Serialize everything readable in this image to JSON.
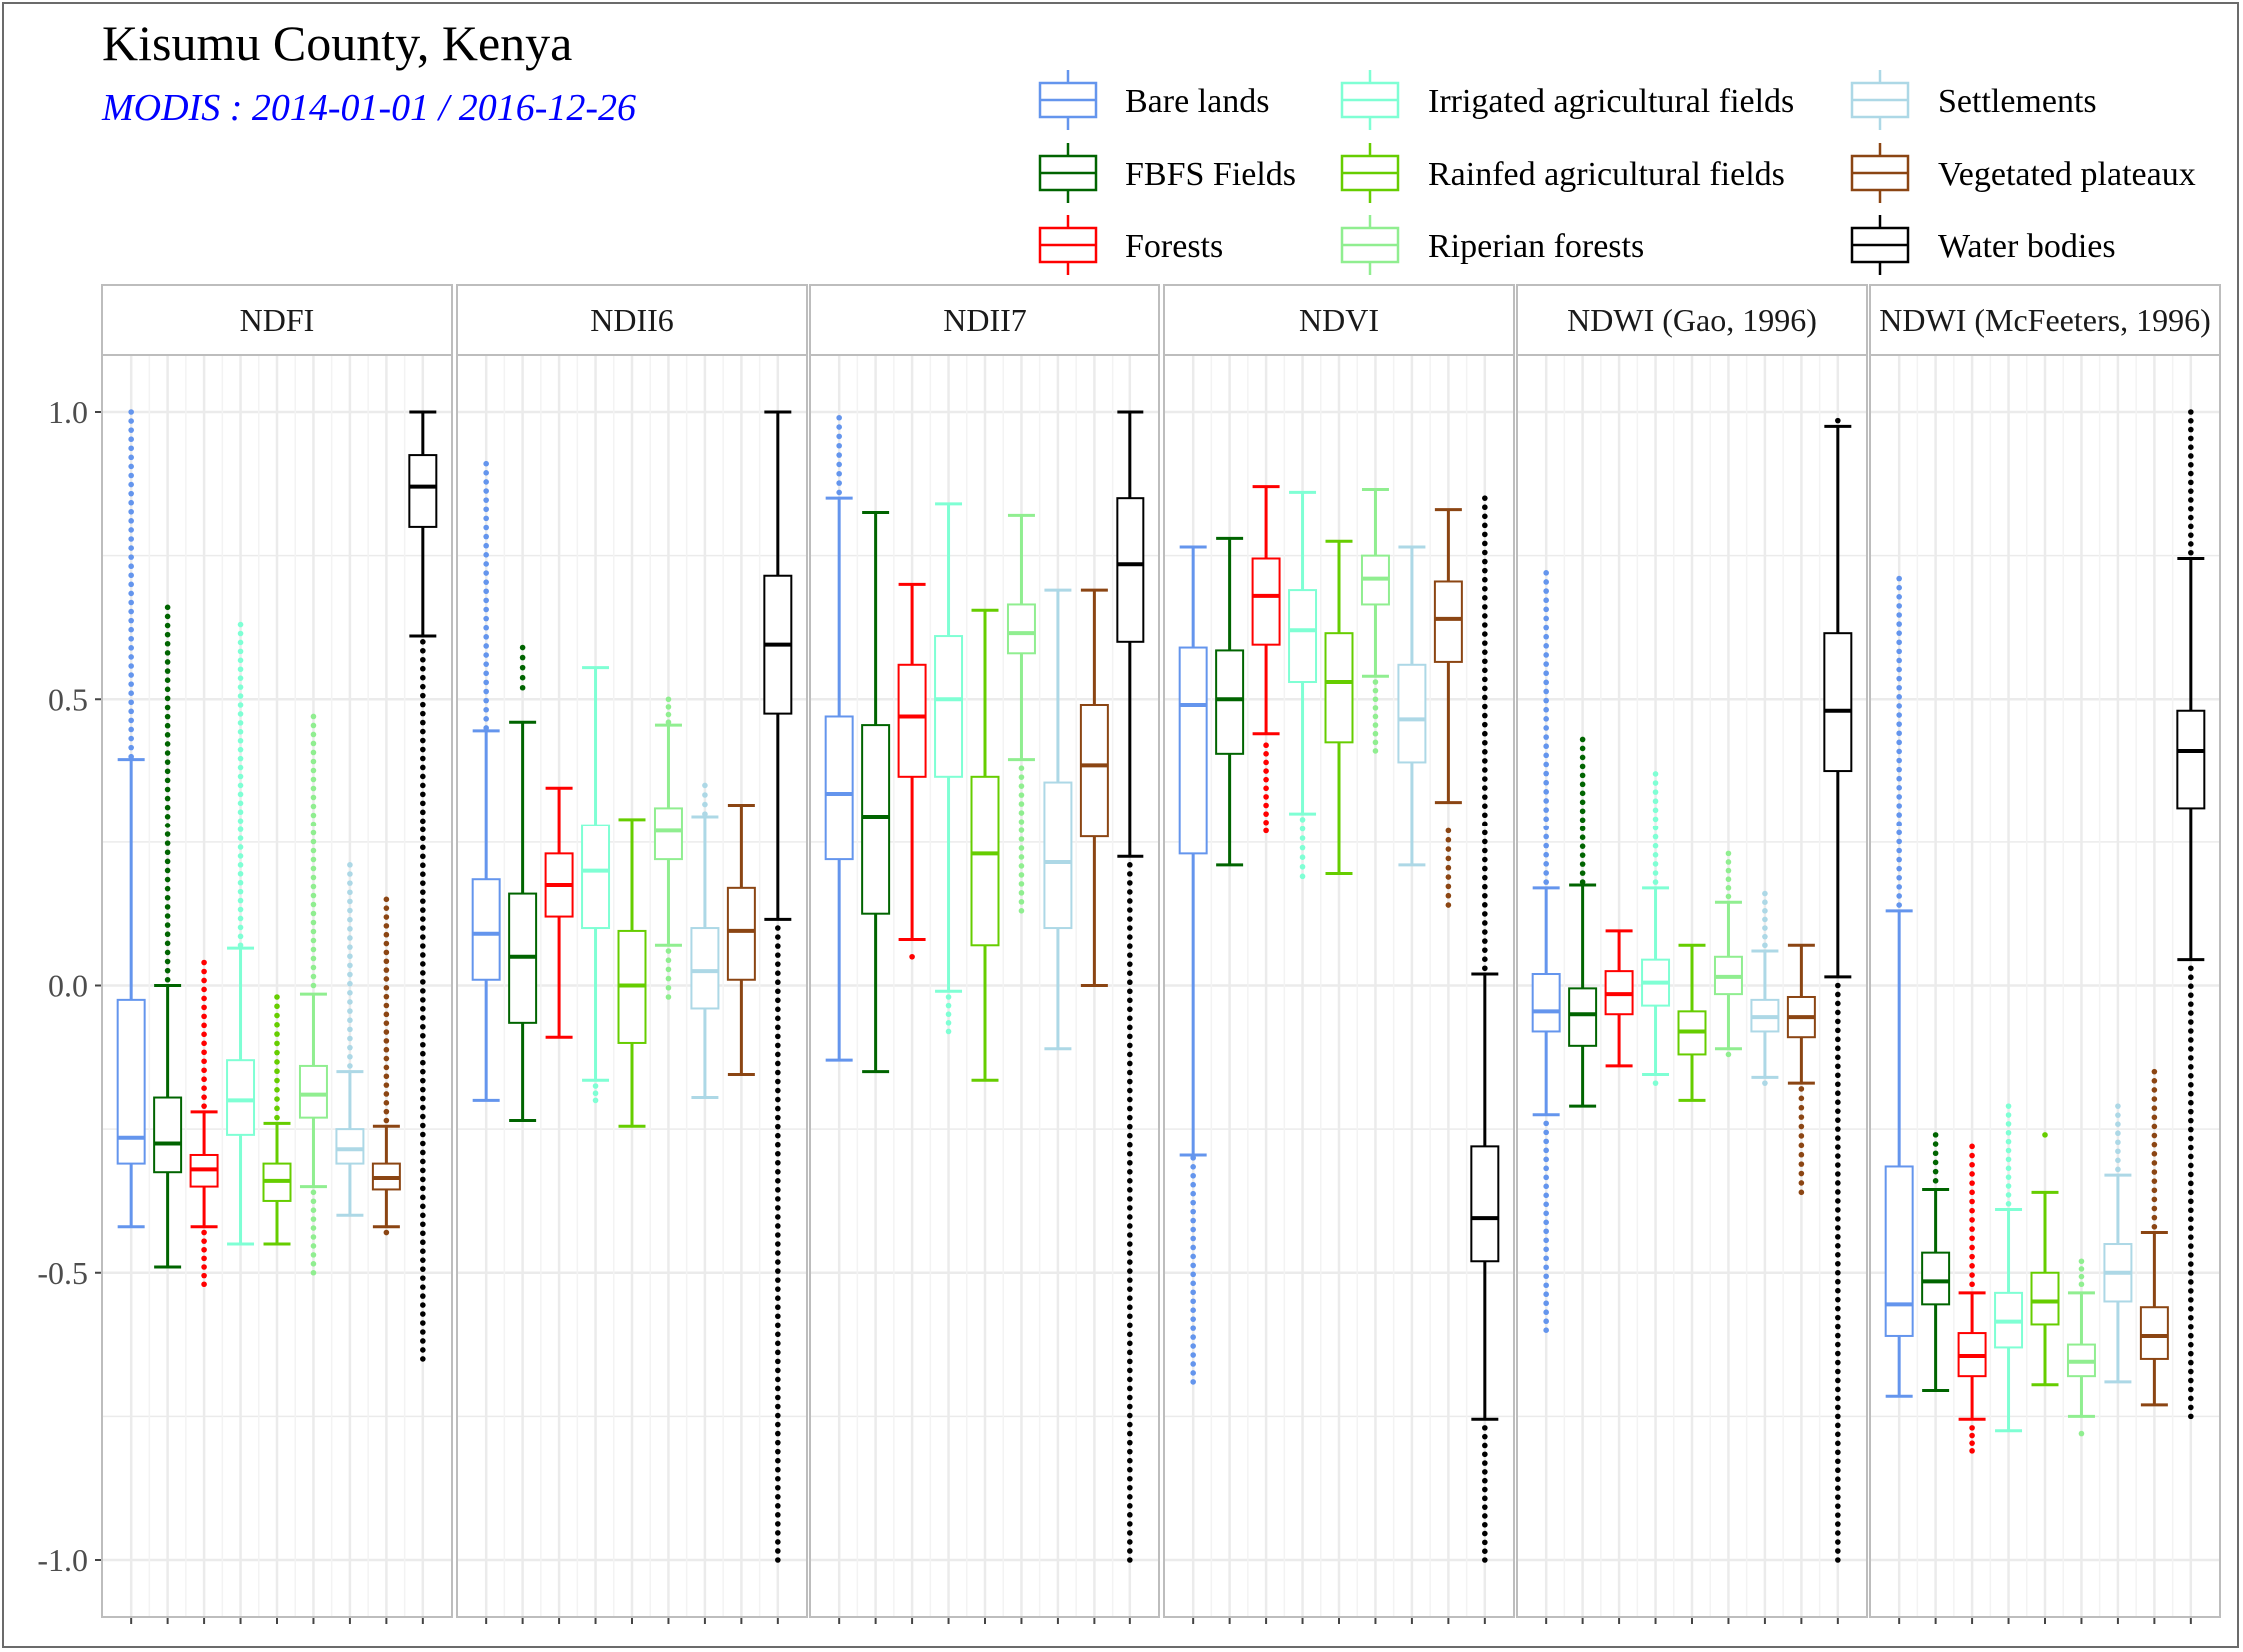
{
  "chart_data": {
    "type": "boxplot",
    "title": "Kisumu County, Kenya",
    "subtitle": "MODIS : 2014-01-01 / 2016-12-26",
    "ylim": [
      -1.0,
      1.0
    ],
    "y_ticks": [
      "-1.0",
      "-0.5",
      "0.0",
      "0.5",
      "1.0"
    ],
    "grid": true,
    "legend_position": "top-right",
    "categories": [
      "Bare lands",
      "FBFS Fields",
      "Forests",
      "Irrigated agricultural fields",
      "Rainfed agricultural fields",
      "Riperian forests",
      "Settlements",
      "Vegetated plateaux",
      "Water bodies"
    ],
    "colors": [
      "#6495ED",
      "#006400",
      "#FF0000",
      "#7FFFD4",
      "#66CD00",
      "#90EE90",
      "#ADD8E6",
      "#8B4513",
      "#000000"
    ],
    "panels": [
      {
        "name": "NDFI",
        "boxes": [
          {
            "lw": -0.42,
            "q1": -0.31,
            "med": -0.265,
            "q3": -0.025,
            "uw": 0.395,
            "out": [
              0.4,
              1.0
            ]
          },
          {
            "lw": -0.49,
            "q1": -0.325,
            "med": -0.275,
            "q3": -0.195,
            "uw": 0.0,
            "out": [
              0.01,
              0.66
            ]
          },
          {
            "lw": -0.42,
            "q1": -0.35,
            "med": -0.32,
            "q3": -0.295,
            "uw": -0.22,
            "out": [
              -0.21,
              0.04,
              -0.43,
              -0.52
            ]
          },
          {
            "lw": -0.45,
            "q1": -0.26,
            "med": -0.2,
            "q3": -0.13,
            "uw": 0.065,
            "out": [
              0.07,
              0.63
            ]
          },
          {
            "lw": -0.45,
            "q1": -0.375,
            "med": -0.34,
            "q3": -0.31,
            "uw": -0.24,
            "out": [
              -0.23,
              -0.1,
              -0.02
            ]
          },
          {
            "lw": -0.35,
            "q1": -0.23,
            "med": -0.19,
            "q3": -0.14,
            "uw": -0.015,
            "out": [
              0.0,
              0.47,
              -0.36,
              -0.5
            ]
          },
          {
            "lw": -0.4,
            "q1": -0.31,
            "med": -0.285,
            "q3": -0.25,
            "uw": -0.15,
            "out": [
              -0.14,
              0.21
            ]
          },
          {
            "lw": -0.42,
            "q1": -0.355,
            "med": -0.335,
            "q3": -0.31,
            "uw": -0.245,
            "out": [
              -0.235,
              0.15,
              -0.43
            ]
          },
          {
            "lw": 0.61,
            "q1": 0.8,
            "med": 0.87,
            "q3": 0.925,
            "uw": 1.0,
            "out": [
              0.6,
              -0.35,
              -0.5,
              -0.65
            ]
          }
        ]
      },
      {
        "name": "NDII6",
        "boxes": [
          {
            "lw": -0.2,
            "q1": 0.01,
            "med": 0.09,
            "q3": 0.185,
            "uw": 0.445,
            "out": [
              0.45,
              0.91
            ]
          },
          {
            "lw": -0.235,
            "q1": -0.065,
            "med": 0.05,
            "q3": 0.16,
            "uw": 0.46,
            "out": [
              0.52,
              0.59
            ]
          },
          {
            "lw": -0.09,
            "q1": 0.12,
            "med": 0.175,
            "q3": 0.23,
            "uw": 0.345,
            "out": []
          },
          {
            "lw": -0.165,
            "q1": 0.1,
            "med": 0.2,
            "q3": 0.28,
            "uw": 0.555,
            "out": [
              -0.175,
              -0.2
            ]
          },
          {
            "lw": -0.245,
            "q1": -0.1,
            "med": 0.0,
            "q3": 0.095,
            "uw": 0.29,
            "out": []
          },
          {
            "lw": 0.07,
            "q1": 0.22,
            "med": 0.27,
            "q3": 0.31,
            "uw": 0.455,
            "out": [
              0.46,
              0.5,
              0.06,
              -0.02
            ]
          },
          {
            "lw": -0.195,
            "q1": -0.04,
            "med": 0.025,
            "q3": 0.1,
            "uw": 0.295,
            "out": [
              0.3,
              0.35
            ]
          },
          {
            "lw": -0.155,
            "q1": 0.01,
            "med": 0.095,
            "q3": 0.17,
            "uw": 0.315,
            "out": []
          },
          {
            "lw": 0.115,
            "q1": 0.475,
            "med": 0.595,
            "q3": 0.715,
            "uw": 1.0,
            "out": [
              0.1,
              -1.0
            ]
          }
        ]
      },
      {
        "name": "NDII7",
        "boxes": [
          {
            "lw": -0.13,
            "q1": 0.22,
            "med": 0.335,
            "q3": 0.47,
            "uw": 0.85,
            "out": [
              0.86,
              0.99
            ]
          },
          {
            "lw": -0.15,
            "q1": 0.125,
            "med": 0.295,
            "q3": 0.455,
            "uw": 0.825,
            "out": []
          },
          {
            "lw": 0.08,
            "q1": 0.365,
            "med": 0.47,
            "q3": 0.56,
            "uw": 0.7,
            "out": [
              0.05
            ]
          },
          {
            "lw": -0.01,
            "q1": 0.365,
            "med": 0.5,
            "q3": 0.61,
            "uw": 0.84,
            "out": [
              -0.02,
              -0.08
            ]
          },
          {
            "lw": -0.165,
            "q1": 0.07,
            "med": 0.23,
            "q3": 0.365,
            "uw": 0.655,
            "out": []
          },
          {
            "lw": 0.395,
            "q1": 0.58,
            "med": 0.615,
            "q3": 0.665,
            "uw": 0.82,
            "out": [
              0.38,
              0.13
            ]
          },
          {
            "lw": -0.11,
            "q1": 0.1,
            "med": 0.215,
            "q3": 0.355,
            "uw": 0.69,
            "out": []
          },
          {
            "lw": 0.0,
            "q1": 0.26,
            "med": 0.385,
            "q3": 0.49,
            "uw": 0.69,
            "out": []
          },
          {
            "lw": 0.225,
            "q1": 0.6,
            "med": 0.735,
            "q3": 0.85,
            "uw": 1.0,
            "out": [
              0.21,
              -1.0
            ]
          }
        ]
      },
      {
        "name": "NDVI",
        "boxes": [
          {
            "lw": -0.295,
            "q1": 0.23,
            "med": 0.49,
            "q3": 0.59,
            "uw": 0.765,
            "out": [
              -0.3,
              -0.69
            ]
          },
          {
            "lw": 0.21,
            "q1": 0.405,
            "med": 0.5,
            "q3": 0.585,
            "uw": 0.78,
            "out": []
          },
          {
            "lw": 0.44,
            "q1": 0.595,
            "med": 0.68,
            "q3": 0.745,
            "uw": 0.87,
            "out": [
              0.42,
              0.27
            ]
          },
          {
            "lw": 0.3,
            "q1": 0.53,
            "med": 0.62,
            "q3": 0.69,
            "uw": 0.86,
            "out": [
              0.29,
              0.19
            ]
          },
          {
            "lw": 0.195,
            "q1": 0.425,
            "med": 0.53,
            "q3": 0.615,
            "uw": 0.775,
            "out": []
          },
          {
            "lw": 0.54,
            "q1": 0.665,
            "med": 0.71,
            "q3": 0.75,
            "uw": 0.865,
            "out": [
              0.53,
              0.41
            ]
          },
          {
            "lw": 0.21,
            "q1": 0.39,
            "med": 0.465,
            "q3": 0.56,
            "uw": 0.765,
            "out": []
          },
          {
            "lw": 0.32,
            "q1": 0.565,
            "med": 0.64,
            "q3": 0.705,
            "uw": 0.83,
            "out": [
              0.27,
              0.14
            ]
          },
          {
            "lw": -0.755,
            "q1": -0.48,
            "med": -0.405,
            "q3": -0.28,
            "uw": 0.02,
            "out": [
              0.03,
              0.85,
              -0.77,
              -1.0
            ]
          }
        ]
      },
      {
        "name": "NDWI (Gao, 1996)",
        "boxes": [
          {
            "lw": -0.225,
            "q1": -0.08,
            "med": -0.045,
            "q3": 0.02,
            "uw": 0.17,
            "out": [
              0.18,
              0.72,
              -0.24,
              -0.6
            ]
          },
          {
            "lw": -0.21,
            "q1": -0.105,
            "med": -0.05,
            "q3": -0.005,
            "uw": 0.175,
            "out": [
              0.18,
              0.43
            ]
          },
          {
            "lw": -0.14,
            "q1": -0.05,
            "med": -0.015,
            "q3": 0.025,
            "uw": 0.095,
            "out": []
          },
          {
            "lw": -0.155,
            "q1": -0.035,
            "med": 0.005,
            "q3": 0.045,
            "uw": 0.17,
            "out": [
              0.18,
              0.37,
              -0.17
            ]
          },
          {
            "lw": -0.2,
            "q1": -0.12,
            "med": -0.08,
            "q3": -0.045,
            "uw": 0.07,
            "out": []
          },
          {
            "lw": -0.11,
            "q1": -0.015,
            "med": 0.015,
            "q3": 0.05,
            "uw": 0.145,
            "out": [
              0.155,
              0.23,
              -0.12
            ]
          },
          {
            "lw": -0.16,
            "q1": -0.08,
            "med": -0.055,
            "q3": -0.025,
            "uw": 0.06,
            "out": [
              0.07,
              0.16,
              -0.17
            ]
          },
          {
            "lw": -0.17,
            "q1": -0.09,
            "med": -0.055,
            "q3": -0.02,
            "uw": 0.07,
            "out": [
              -0.18,
              -0.21,
              -0.36
            ]
          },
          {
            "lw": 0.015,
            "q1": 0.375,
            "med": 0.48,
            "q3": 0.615,
            "uw": 0.975,
            "out": [
              0.985,
              0.0,
              -1.0
            ]
          }
        ]
      },
      {
        "name": "NDWI (McFeeters, 1996)",
        "boxes": [
          {
            "lw": -0.715,
            "q1": -0.61,
            "med": -0.555,
            "q3": -0.315,
            "uw": 0.13,
            "out": [
              0.14,
              0.71
            ]
          },
          {
            "lw": -0.705,
            "q1": -0.555,
            "med": -0.515,
            "q3": -0.465,
            "uw": -0.355,
            "out": [
              -0.34,
              -0.26
            ]
          },
          {
            "lw": -0.755,
            "q1": -0.68,
            "med": -0.645,
            "q3": -0.605,
            "uw": -0.535,
            "out": [
              -0.52,
              -0.28,
              -0.77,
              -0.81
            ]
          },
          {
            "lw": -0.775,
            "q1": -0.63,
            "med": -0.585,
            "q3": -0.535,
            "uw": -0.39,
            "out": [
              -0.38,
              -0.21
            ]
          },
          {
            "lw": -0.695,
            "q1": -0.59,
            "med": -0.55,
            "q3": -0.5,
            "uw": -0.36,
            "out": [
              -0.26
            ]
          },
          {
            "lw": -0.75,
            "q1": -0.68,
            "med": -0.655,
            "q3": -0.625,
            "uw": -0.535,
            "out": [
              -0.52,
              -0.48,
              -0.78
            ]
          },
          {
            "lw": -0.69,
            "q1": -0.55,
            "med": -0.5,
            "q3": -0.45,
            "uw": -0.33,
            "out": [
              -0.32,
              -0.21
            ]
          },
          {
            "lw": -0.73,
            "q1": -0.65,
            "med": -0.61,
            "q3": -0.56,
            "uw": -0.43,
            "out": [
              -0.42,
              -0.15
            ]
          },
          {
            "lw": 0.045,
            "q1": 0.31,
            "med": 0.41,
            "q3": 0.48,
            "uw": 0.745,
            "out": [
              0.755,
              1.0,
              0.03,
              -0.75
            ]
          }
        ]
      }
    ]
  }
}
